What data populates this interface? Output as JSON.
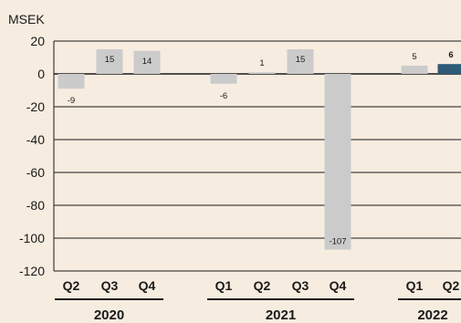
{
  "chart_data": {
    "type": "bar",
    "unit_label": "MSEK",
    "ylim": [
      -120,
      20
    ],
    "yticks": [
      "20",
      "0",
      "-20",
      "-40",
      "-60",
      "-80",
      "-100",
      "-120"
    ],
    "grid": true,
    "categories": [
      "Q2",
      "Q3",
      "Q4",
      "Q1",
      "Q2",
      "Q3",
      "Q4",
      "Q1",
      "Q2"
    ],
    "values": [
      -9,
      15,
      14,
      -6,
      1,
      15,
      -107,
      5,
      6
    ],
    "value_labels": [
      "-9",
      "15",
      "14",
      "-6",
      "1",
      "15",
      "-107",
      "5",
      "6"
    ],
    "years": [
      {
        "label": "2020",
        "quarters": 3
      },
      {
        "label": "2021",
        "quarters": 4
      },
      {
        "label": "2022",
        "quarters": 2
      }
    ],
    "colors": {
      "bar": "#cbcbcb",
      "highlight": "#2e5b78",
      "axis": "#1a1a1a",
      "background": "#f7ece0"
    },
    "highlight_index": 8
  }
}
